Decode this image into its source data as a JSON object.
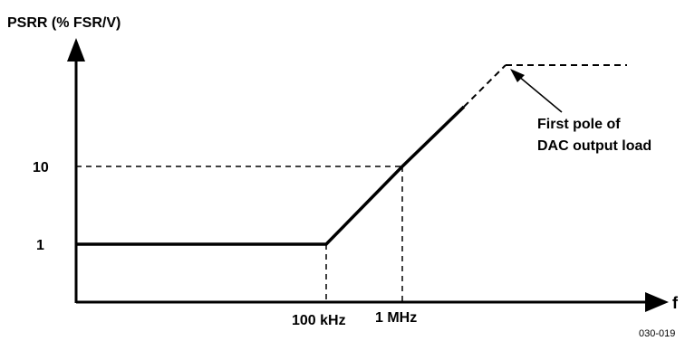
{
  "chart_data": {
    "type": "line",
    "title": "",
    "ylabel": "PSRR (% FSR/V)",
    "xlabel": "f",
    "x_ticks": [
      "100 kHz",
      "1 MHz"
    ],
    "y_ticks": [
      "1",
      "10"
    ],
    "series": [
      {
        "style": "solid",
        "points": [
          {
            "x": "DC",
            "y": 1
          },
          {
            "x": "100 kHz",
            "y": 1
          },
          {
            "x": "1 MHz",
            "y": 10
          },
          {
            "x": "above 1 MHz",
            "y": "rising"
          }
        ]
      },
      {
        "style": "dashed",
        "points": [
          {
            "x": "above 1 MHz",
            "y": "rising"
          },
          {
            "x": "first pole",
            "y": "flat"
          }
        ]
      }
    ],
    "annotation": "First pole of DAC output load",
    "figure_id": "030-019"
  },
  "colors": {
    "ink": "#000000",
    "background": "#ffffff"
  }
}
